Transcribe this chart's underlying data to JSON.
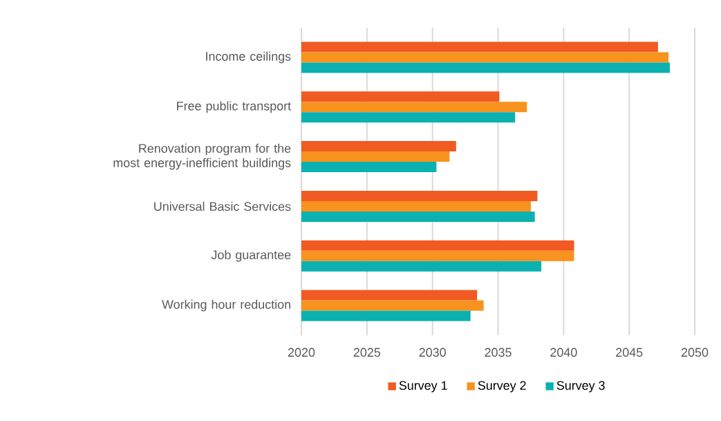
{
  "chart_data": {
    "type": "bar",
    "orientation": "horizontal",
    "categories": [
      "Income ceilings",
      "Free public transport",
      "Renovation program for the most energy-inefficient buildings",
      "Universal Basic Services",
      "Job guarantee",
      "Working hour reduction"
    ],
    "series": [
      {
        "name": "Survey 1",
        "color": "#f15a22",
        "values": [
          2047.2,
          2035.1,
          2031.8,
          2038.0,
          2040.8,
          2033.4
        ]
      },
      {
        "name": "Survey 2",
        "color": "#f7931e",
        "values": [
          2048.0,
          2037.2,
          2031.3,
          2037.5,
          2040.8,
          2033.9
        ]
      },
      {
        "name": "Survey 3",
        "color": "#0bb1b1",
        "values": [
          2048.1,
          2036.3,
          2030.3,
          2037.8,
          2038.3,
          2032.9
        ]
      }
    ],
    "xlim": [
      2020,
      2050
    ],
    "xticks": [
      2020,
      2025,
      2030,
      2035,
      2040,
      2045,
      2050
    ],
    "grid": "x",
    "legend": "bottom"
  }
}
